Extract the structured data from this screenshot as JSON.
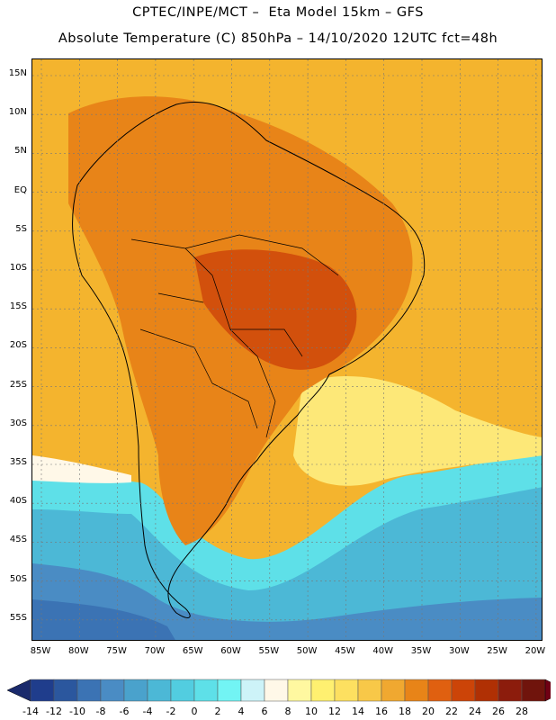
{
  "title_line1": "CPTEC/INPE/MCT –  Eta Model 15km – GFS",
  "title_line2": "Absolute Temperature (C) 850hPa – 14/10/2020 12UTC fct=48h",
  "lat_labels": [
    "15N",
    "10N",
    "5N",
    "EQ",
    "5S",
    "10S",
    "15S",
    "20S",
    "25S",
    "30S",
    "35S",
    "40S",
    "45S",
    "50S",
    "55S"
  ],
  "lon_labels": [
    "85W",
    "80W",
    "75W",
    "70W",
    "65W",
    "60W",
    "55W",
    "50W",
    "45W",
    "40W",
    "35W",
    "30W",
    "25W",
    "20W"
  ],
  "colorbar": {
    "labels": [
      "-14",
      "-12",
      "-10",
      "-8",
      "-6",
      "-4",
      "-2",
      "0",
      "2",
      "4",
      "6",
      "8",
      "10",
      "12",
      "14",
      "16",
      "18",
      "20",
      "22",
      "24",
      "26",
      "28"
    ],
    "colors": [
      "#1f3d8c",
      "#2b579e",
      "#3b73b4",
      "#4a8cc4",
      "#4aa2cc",
      "#4cb8d6",
      "#52cde0",
      "#5ee0e8",
      "#72f4f4",
      "#cdf3f8",
      "#fff8e8",
      "#fff8a0",
      "#fff070",
      "#fde060",
      "#f8c848",
      "#f0a830",
      "#e88418",
      "#e06010",
      "#cc4408",
      "#b03004",
      "#8c1c0c",
      "#70140c"
    ],
    "low_arrow_color": "#1a2a6c",
    "high_arrow_color": "#700014"
  },
  "map_palette": {
    "ocean_warm": "#f4b42e",
    "land_hot": "#e88418",
    "core_hot": "#d2500c",
    "mid_warm": "#f0c848",
    "light": "#fde878",
    "pale": "#fff8e8",
    "cold1": "#5ee0e8",
    "cold2": "#4cb8d6",
    "cold3": "#4a8cc4",
    "cold4": "#3b73b4"
  }
}
